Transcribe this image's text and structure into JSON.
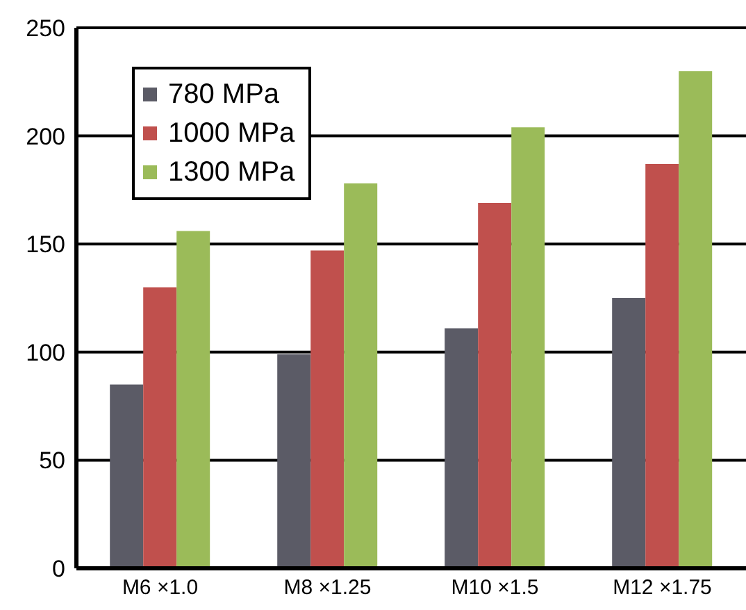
{
  "chart_data": {
    "type": "bar",
    "categories": [
      "M6 ×1.0",
      "M8 ×1.25",
      "M10 ×1.5",
      "M12 ×1.75"
    ],
    "series": [
      {
        "name": "780 MPa",
        "color": "#5b5b66",
        "values": [
          85,
          99,
          111,
          125
        ]
      },
      {
        "name": "1000 MPa",
        "color": "#c0504d",
        "values": [
          130,
          147,
          169,
          187
        ]
      },
      {
        "name": "1300 MPa",
        "color": "#9bbb59",
        "values": [
          156,
          178,
          204,
          230
        ]
      }
    ],
    "ylim": [
      0,
      250
    ],
    "yticks": [
      0,
      50,
      100,
      150,
      200,
      250
    ],
    "grid": "y",
    "legend": "top left"
  }
}
